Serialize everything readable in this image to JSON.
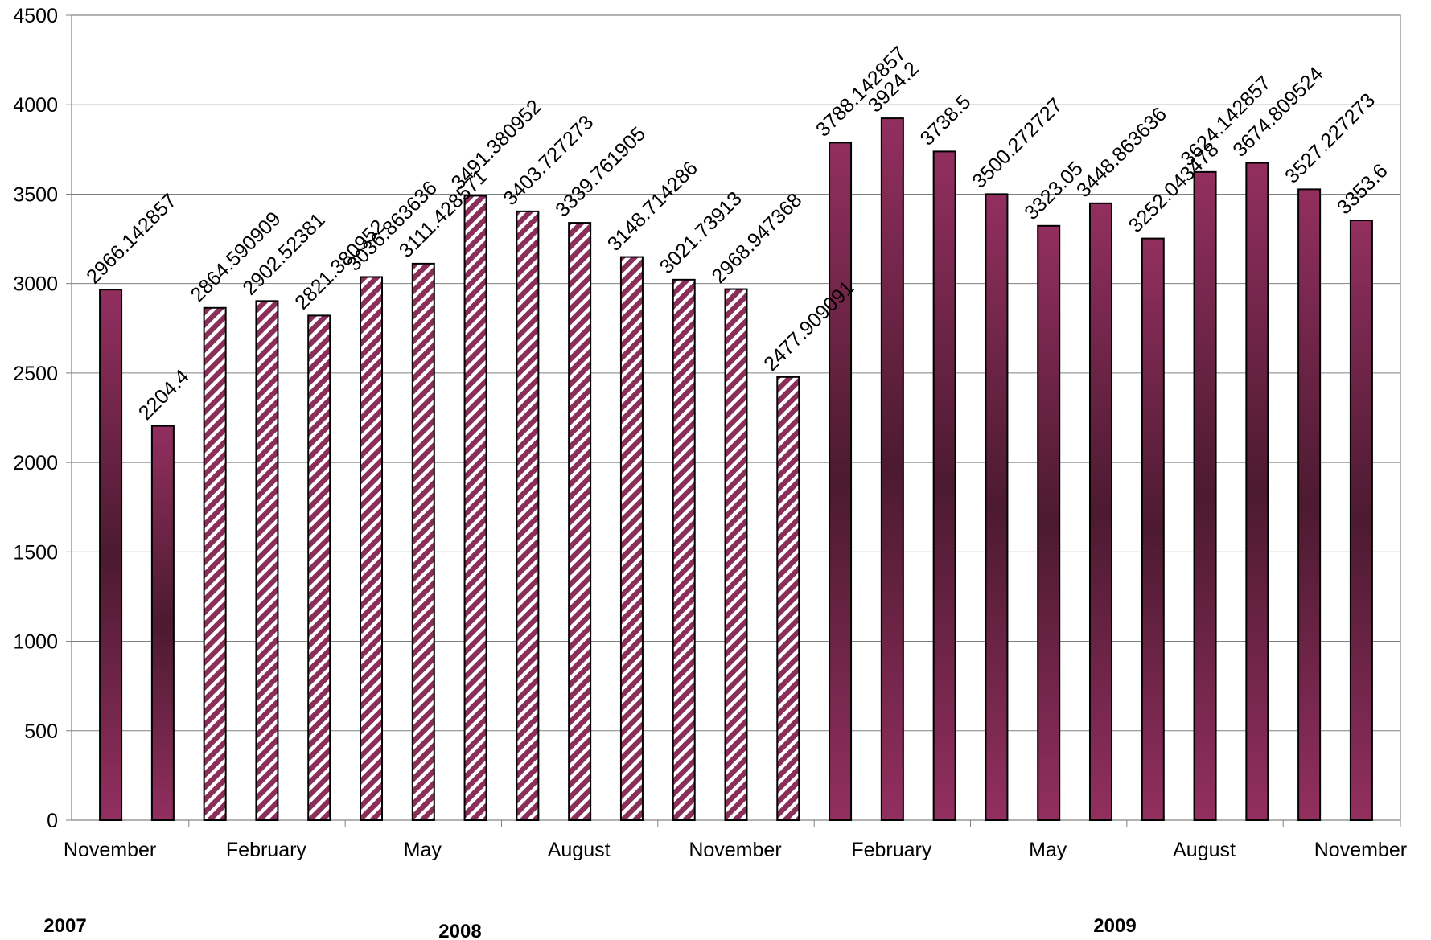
{
  "chart_data": {
    "type": "bar",
    "title": "",
    "xlabel": "",
    "ylabel": "",
    "ylim": [
      0,
      4500
    ],
    "y_ticks": [
      0,
      500,
      1000,
      1500,
      2000,
      2500,
      3000,
      3500,
      4000,
      4500
    ],
    "grid": "horizontal",
    "x_tick_labels": [
      "November",
      "February",
      "May",
      "August",
      "November",
      "February",
      "May",
      "August",
      "November"
    ],
    "year_labels": [
      "2007",
      "2008",
      "2009"
    ],
    "bar_styles": {
      "solid": {
        "edge": "#922F5F",
        "mid": "#4C1A30",
        "outline": "#000000"
      },
      "hatched": {
        "stripe": "#8A2E5A",
        "background": "#ffffff",
        "outline": "#000000"
      }
    },
    "values": [
      2966.142857,
      2204.4,
      2864.590909,
      2902.52381,
      2821.380952,
      3036.863636,
      3111.428571,
      3491.380952,
      3403.727273,
      3339.761905,
      3148.714286,
      3021.73913,
      2968.947368,
      2477.909091,
      3788.142857,
      3924.2,
      3738.5,
      3500.272727,
      3323.05,
      3448.863636,
      3252.043478,
      3624.142857,
      3674.809524,
      3527.227273,
      3353.6
    ],
    "data_labels": [
      "2966.142857",
      "2204.4",
      "2864.590909",
      "2902.52381",
      "2821.380952",
      "3036.863636",
      "3111.428571",
      "3491.380952",
      "3403.727273",
      "3339.761905",
      "3148.714286",
      "3021.73913",
      "2968.947368",
      "2477.909091",
      "3788.142857",
      "3924.2",
      "3738.5",
      "3500.272727",
      "3323.05",
      "3448.863636",
      "3252.043478",
      "3624.142857",
      "3674.809524",
      "3527.227273",
      "3353.6"
    ],
    "styles": [
      "solid",
      "solid",
      "hatched",
      "hatched",
      "hatched",
      "hatched",
      "hatched",
      "hatched",
      "hatched",
      "hatched",
      "hatched",
      "hatched",
      "hatched",
      "hatched",
      "solid",
      "solid",
      "solid",
      "solid",
      "solid",
      "solid",
      "solid",
      "solid",
      "solid",
      "solid",
      "solid"
    ]
  }
}
